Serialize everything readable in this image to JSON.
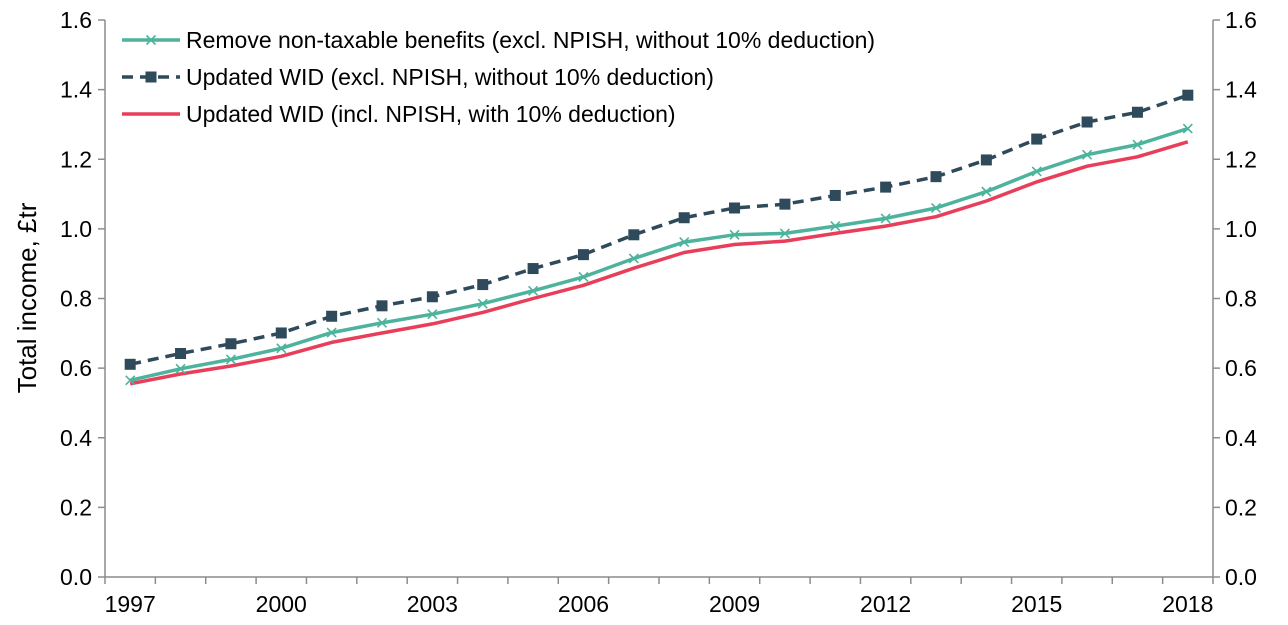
{
  "chart_data": {
    "type": "line",
    "title": "",
    "xlabel": "",
    "ylabel": "Total income, £tr",
    "ylim": [
      0,
      1.6
    ],
    "y_ticks": [
      "0.0",
      "0.2",
      "0.4",
      "0.6",
      "0.8",
      "1.0",
      "1.2",
      "1.4",
      "1.6"
    ],
    "x": [
      1997,
      1998,
      1999,
      2000,
      2001,
      2002,
      2003,
      2004,
      2005,
      2006,
      2007,
      2008,
      2009,
      2010,
      2011,
      2012,
      2013,
      2014,
      2015,
      2016,
      2017,
      2018
    ],
    "x_tick_labels": [
      "1997",
      "2000",
      "2003",
      "2006",
      "2009",
      "2012",
      "2015",
      "2018"
    ],
    "secondary_y_axis": true,
    "grid": false,
    "legend_position": "top-left",
    "series": [
      {
        "name": "Remove non-taxable benefits (excl. NPISH, without 10% deduction)",
        "color": "#4DB39C",
        "marker": "x",
        "dash": "solid",
        "values": [
          0.565,
          0.598,
          0.625,
          0.657,
          0.702,
          0.73,
          0.755,
          0.785,
          0.822,
          0.862,
          0.915,
          0.962,
          0.983,
          0.987,
          1.008,
          1.03,
          1.06,
          1.107,
          1.165,
          1.213,
          1.242,
          1.288
        ]
      },
      {
        "name": "Updated WID (excl. NPISH, without 10% deduction)",
        "color": "#2F4A5B",
        "marker": "square",
        "dash": "dashed",
        "values": [
          0.611,
          0.642,
          0.67,
          0.701,
          0.749,
          0.779,
          0.805,
          0.84,
          0.886,
          0.926,
          0.983,
          1.032,
          1.06,
          1.071,
          1.096,
          1.12,
          1.15,
          1.198,
          1.258,
          1.307,
          1.335,
          1.384
        ]
      },
      {
        "name": "Updated WID (incl. NPISH, with 10% deduction)",
        "color": "#E83E5A",
        "marker": "none",
        "dash": "solid",
        "values": [
          0.555,
          0.583,
          0.606,
          0.634,
          0.674,
          0.701,
          0.727,
          0.76,
          0.8,
          0.838,
          0.887,
          0.932,
          0.955,
          0.965,
          0.987,
          1.008,
          1.035,
          1.08,
          1.135,
          1.18,
          1.207,
          1.25
        ]
      }
    ]
  }
}
